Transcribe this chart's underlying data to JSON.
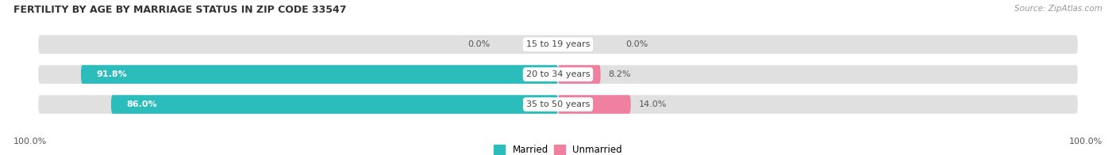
{
  "title": "FERTILITY BY AGE BY MARRIAGE STATUS IN ZIP CODE 33547",
  "source": "Source: ZipAtlas.com",
  "categories": [
    "15 to 19 years",
    "20 to 34 years",
    "35 to 50 years"
  ],
  "married_values": [
    0.0,
    91.8,
    86.0
  ],
  "unmarried_values": [
    0.0,
    8.2,
    14.0
  ],
  "married_color": "#2bbcbc",
  "unmarried_color": "#f080a0",
  "bar_bg_color": "#e0e0e0",
  "label_color": "#555555",
  "title_color": "#333333",
  "axis_label_left": "100.0%",
  "axis_label_right": "100.0%",
  "legend_married": "Married",
  "legend_unmarried": "Unmarried",
  "background_color": "#ffffff",
  "bar_height": 0.62,
  "max_val": 100.0,
  "center_label_color": "#444444",
  "value_label_color_on_bar": "#ffffff",
  "value_label_color_outside": "#555555"
}
